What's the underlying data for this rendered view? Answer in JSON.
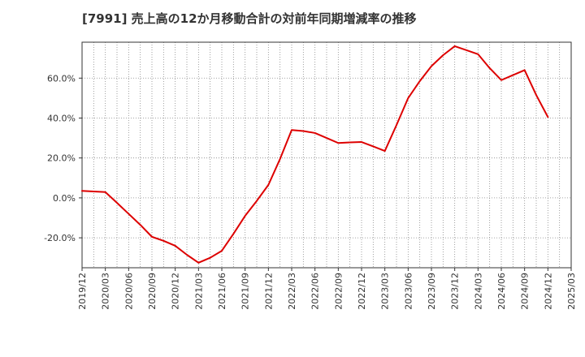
{
  "chart_data": {
    "type": "line",
    "title": "[7991]  売上高の12か月移動合計の対前年同期増減率の推移",
    "xlabel": "",
    "ylabel": "",
    "ylim": [
      -35,
      78
    ],
    "yticks": [
      -20,
      0,
      20,
      40,
      60
    ],
    "ytick_labels": [
      "-20.0%",
      "0.0%",
      "20.0%",
      "40.0%",
      "60.0%"
    ],
    "xtick_labels": [
      "2019/12",
      "2020/03",
      "2020/06",
      "2020/09",
      "2020/12",
      "2021/03",
      "2021/06",
      "2021/09",
      "2021/12",
      "2022/03",
      "2022/06",
      "2022/09",
      "2022/12",
      "2023/03",
      "2023/06",
      "2023/09",
      "2023/12",
      "2024/03",
      "2024/06",
      "2024/09",
      "2024/12",
      "2025/03"
    ],
    "grid": true,
    "series": [
      {
        "name": "対前年同期増減率",
        "color": "#dd0000",
        "x": [
          0,
          0.5,
          1,
          1.5,
          2,
          2.5,
          3,
          3.5,
          4,
          4.5,
          5,
          5.5,
          6,
          6.5,
          7,
          7.5,
          8,
          8.5,
          9,
          9.5,
          10,
          10.5,
          11,
          11.5,
          12,
          12.5,
          13,
          13.5,
          14,
          14.5,
          15,
          15.5,
          16,
          16.5,
          17,
          17.5,
          18,
          18.5,
          19,
          19.5,
          20
        ],
        "values": [
          3.5,
          3.2,
          2.9,
          -2.5,
          -8.0,
          -13.5,
          -19.5,
          -21.5,
          -24.0,
          -28.5,
          -32.5,
          -30.0,
          -26.5,
          -18.0,
          -9.0,
          -1.5,
          6.5,
          19.5,
          34.0,
          33.5,
          32.5,
          30.0,
          27.5,
          27.8,
          28.0,
          25.8,
          23.5,
          36.5,
          50.0,
          58.5,
          66.0,
          71.5,
          76.0,
          74.0,
          72.0,
          65.0,
          59.0,
          61.5,
          64.0,
          51.5,
          40.5
        ]
      }
    ]
  }
}
